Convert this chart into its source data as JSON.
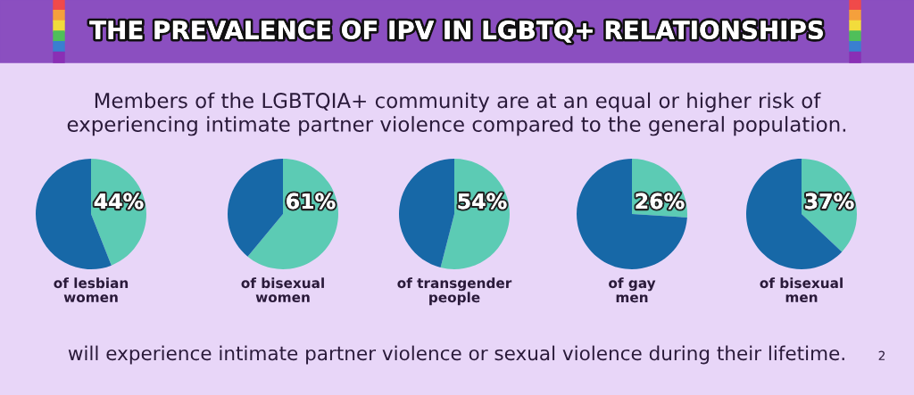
{
  "chart_data": [
    {
      "type": "pie",
      "title": "THE PREVALENCE OF IPV IN LGBTQ+ RELATIONSHIPS",
      "subtitle": "Members of the LGBTQIA+ community are at an equal or higher risk of\nexperiencing intimate partner violence compared to the general population.",
      "xlabel": "of lesbian\nwomen",
      "categories": [
        null,
        null
      ],
      "values": [
        44,
        56
      ],
      "colors": [
        "#5ccbb4",
        "#1768a7"
      ],
      "value_labels": [
        "44%",
        null
      ],
      "annotations": [
        "will experience intimate partner violence or sexual violence during their lifetime.",
        "2"
      ]
    },
    {
      "type": "pie",
      "xlabel": "of bisexual\nwomen",
      "categories": [
        null,
        null
      ],
      "values": [
        61,
        39
      ],
      "colors": [
        "#5ccbb4",
        "#1768a7"
      ],
      "value_labels": [
        "61%",
        null
      ]
    },
    {
      "type": "pie",
      "xlabel": "of transgender\npeople",
      "categories": [
        null,
        null
      ],
      "values": [
        54,
        46
      ],
      "colors": [
        "#5ccbb4",
        "#1768a7"
      ],
      "value_labels": [
        "54%",
        null
      ]
    },
    {
      "type": "pie",
      "xlabel": "of gay\nmen",
      "categories": [
        null,
        null
      ],
      "values": [
        26,
        74
      ],
      "colors": [
        "#5ccbb4",
        "#1768a7"
      ],
      "value_labels": [
        "26%",
        null
      ]
    },
    {
      "type": "pie",
      "xlabel": "of bisexual\nmen",
      "categories": [
        null,
        null
      ],
      "values": [
        37,
        63
      ],
      "colors": [
        "#5ccbb4",
        "#1768a7"
      ],
      "value_labels": [
        "37%",
        null
      ]
    }
  ]
}
